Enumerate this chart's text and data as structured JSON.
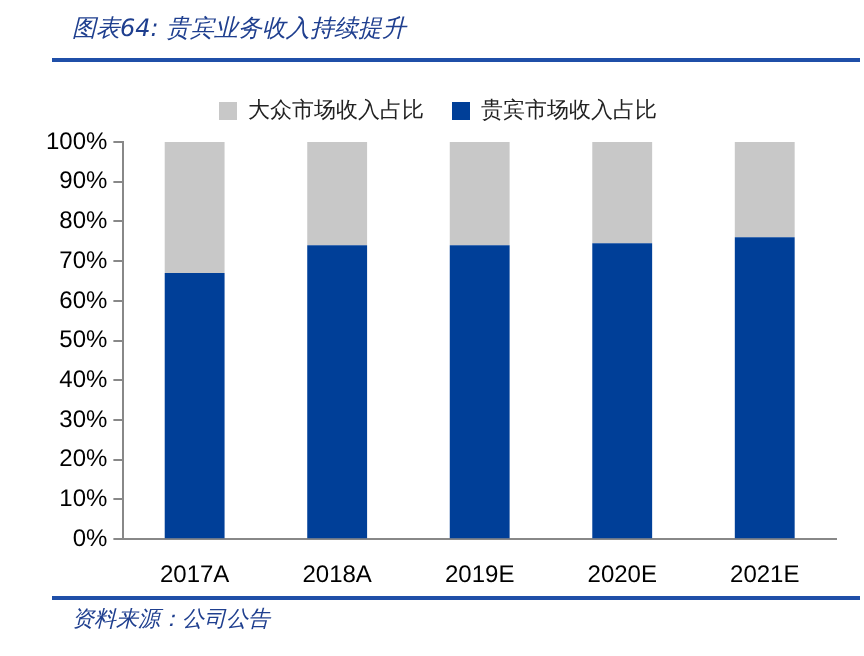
{
  "chart_data": {
    "type": "bar",
    "title": "图表64: 贵宾业务收入持续提升",
    "categories": [
      "2017A",
      "2018A",
      "2019E",
      "2020E",
      "2021E"
    ],
    "stacked": true,
    "series": [
      {
        "name": "贵宾市场收入占比",
        "color": "#003f98",
        "values": [
          67,
          74,
          74,
          74.5,
          76
        ]
      },
      {
        "name": "大众市场收入占比",
        "color": "#c8c8c8",
        "values": [
          33,
          26,
          26,
          25.5,
          24
        ]
      }
    ],
    "ylim": [
      0,
      100
    ],
    "yticks": [
      {
        "value": 0,
        "label": "0%"
      },
      {
        "value": 10,
        "label": "10%"
      },
      {
        "value": 20,
        "label": "20%"
      },
      {
        "value": 30,
        "label": "30%"
      },
      {
        "value": 40,
        "label": "40%"
      },
      {
        "value": 50,
        "label": "50%"
      },
      {
        "value": 60,
        "label": "60%"
      },
      {
        "value": 70,
        "label": "70%"
      },
      {
        "value": 80,
        "label": "80%"
      },
      {
        "value": 90,
        "label": "90%"
      },
      {
        "value": 100,
        "label": "100%"
      }
    ],
    "grid": false,
    "legend": "top",
    "annotations": [
      "资料来源：公司公告"
    ]
  }
}
